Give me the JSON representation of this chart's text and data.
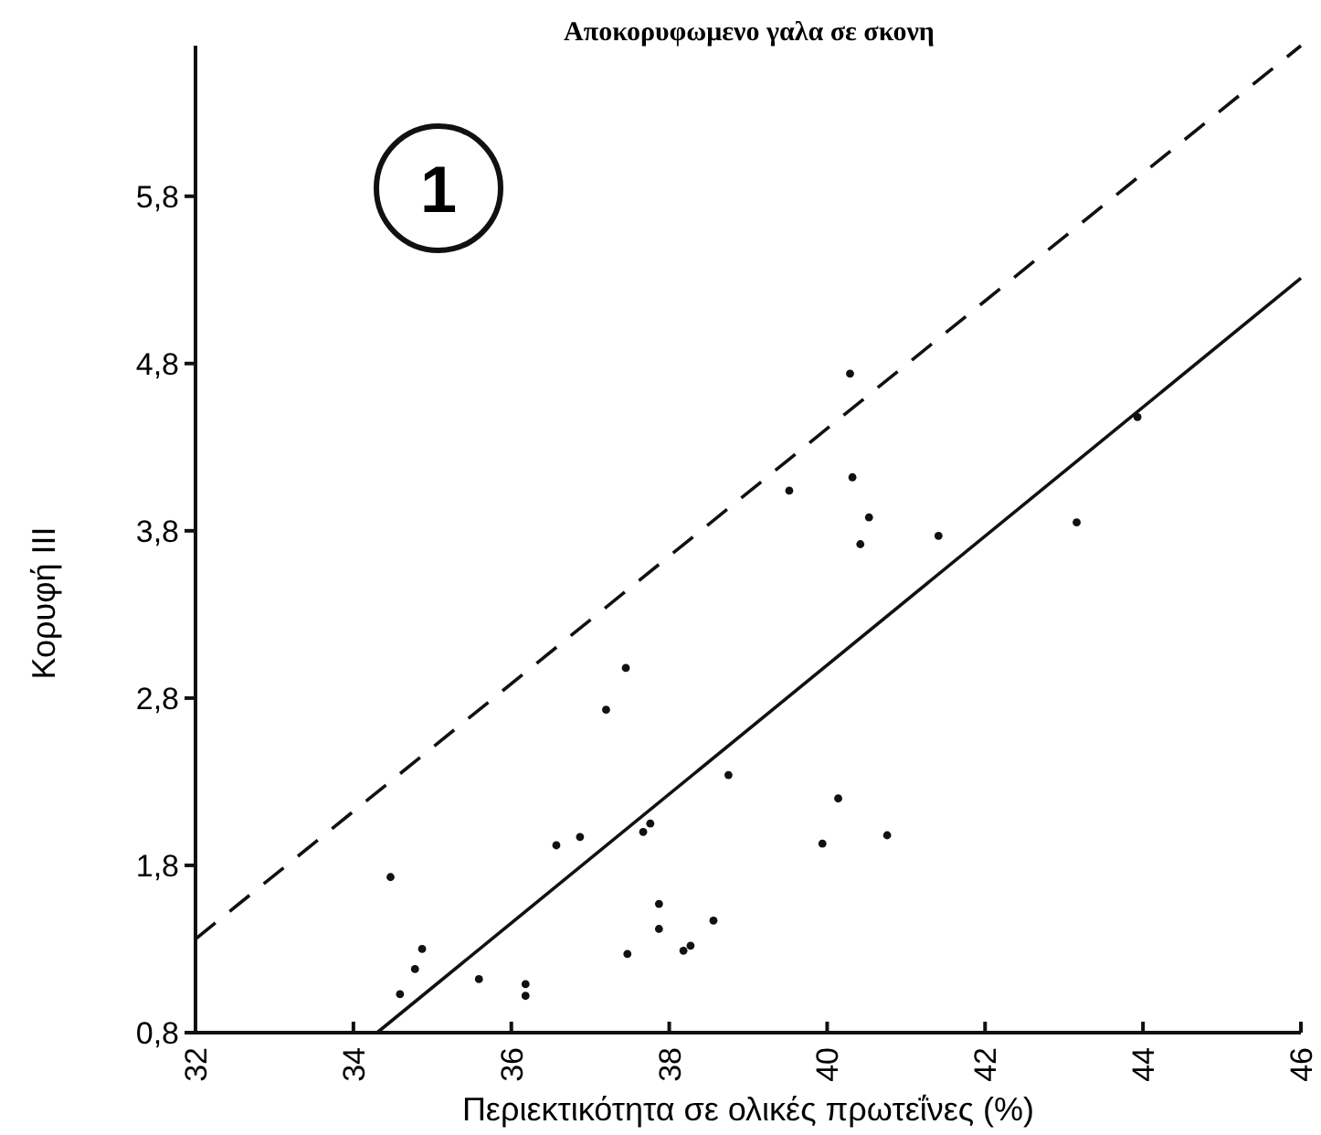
{
  "chart_data": {
    "type": "scatter",
    "title": "Αποκορυφωμενο γαλα σε σκονη",
    "xlabel": "Περιεκτικότητα σε ολικές πρωτεΐνες (%)",
    "ylabel": "Κορυφή ΙΙΙ",
    "annotations": [
      "1"
    ],
    "xlim": [
      32,
      46
    ],
    "xticks": [
      32,
      34,
      36,
      38,
      40,
      42,
      44,
      46
    ],
    "ylim": [
      0.8,
      6.7
    ],
    "yticks": [
      {
        "value": 0.8,
        "label": "0,8"
      },
      {
        "value": 1.8,
        "label": "1,8"
      },
      {
        "value": 2.8,
        "label": "2,8"
      },
      {
        "value": 3.8,
        "label": "3,8"
      },
      {
        "value": 4.8,
        "label": "4,8"
      },
      {
        "value": 5.8,
        "label": "5,8"
      }
    ],
    "grid": false,
    "series": [
      {
        "color": "#111111",
        "marker": "circle",
        "x": [
          34.47,
          34.59,
          34.78,
          34.87,
          35.59,
          36.18,
          36.18,
          36.57,
          36.87,
          37.45,
          37.2,
          37.67,
          37.76,
          37.87,
          37.87,
          37.47,
          38.18,
          38.27,
          38.56,
          38.75,
          39.52,
          39.94,
          40.14,
          40.29,
          40.32,
          40.53,
          40.42,
          40.76,
          41.41,
          43.16,
          43.93
        ],
        "values": [
          1.73,
          1.03,
          1.18,
          1.3,
          1.12,
          1.09,
          1.02,
          1.92,
          1.97,
          2.98,
          2.73,
          2.0,
          2.05,
          1.57,
          1.42,
          1.27,
          1.29,
          1.32,
          1.47,
          2.34,
          4.04,
          1.93,
          2.2,
          4.74,
          4.12,
          3.88,
          3.72,
          1.98,
          3.77,
          3.85,
          4.48
        ]
      },
      {
        "type": "line",
        "color": "#111111",
        "line_style": "solid",
        "marker": "none",
        "x": [
          34.3,
          46
        ],
        "values": [
          0.8,
          5.31
        ]
      },
      {
        "type": "line",
        "color": "#111111",
        "line_style": "dashed",
        "marker": "none",
        "x": [
          32,
          46
        ],
        "values": [
          1.36,
          6.7
        ]
      }
    ]
  }
}
